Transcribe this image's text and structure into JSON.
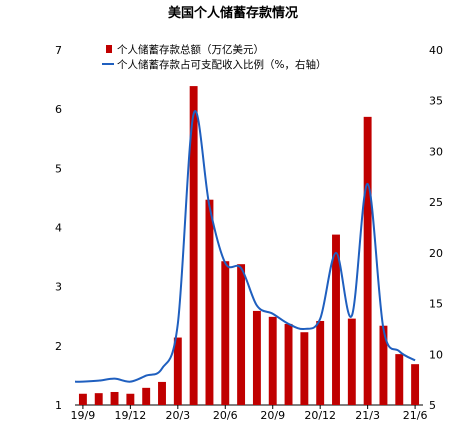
{
  "chart_data": {
    "type": "bar+line",
    "title": "美国个人储蓄存款情况",
    "categories": [
      "19/9",
      "19/10",
      "19/11",
      "19/12",
      "20/1",
      "20/2",
      "20/3",
      "20/4",
      "20/5",
      "20/6",
      "20/7",
      "20/8",
      "20/9",
      "20/10",
      "20/11",
      "20/12",
      "21/1",
      "21/2",
      "21/3",
      "21/4",
      "21/5",
      "21/6"
    ],
    "x_tick_labels": [
      "19/9",
      "19/12",
      "20/3",
      "20/6",
      "20/9",
      "20/12",
      "21/3",
      "21/6"
    ],
    "series": [
      {
        "name": "个人储蓄存款总额（万亿美元）",
        "type": "bar",
        "axis": "left",
        "color": "#c00000",
        "values": [
          1.19,
          1.2,
          1.22,
          1.19,
          1.29,
          1.39,
          2.14,
          6.39,
          4.47,
          3.43,
          3.38,
          2.59,
          2.49,
          2.37,
          2.23,
          2.42,
          3.88,
          2.46,
          5.87,
          2.34,
          1.86,
          1.69
        ]
      },
      {
        "name": "个人储蓄存款占可支配收入比例（%，右轴）",
        "type": "line",
        "axis": "right",
        "color": "#1f5fbf",
        "values": [
          7.3,
          7.4,
          7.6,
          7.3,
          7.9,
          8.6,
          13.0,
          33.7,
          24.6,
          19.0,
          18.5,
          14.8,
          14.0,
          13.0,
          12.5,
          13.5,
          20.0,
          13.8,
          26.8,
          12.5,
          10.3,
          9.4
        ]
      }
    ],
    "ylim_left": [
      1,
      7
    ],
    "yticks_left": [
      "1",
      "2",
      "3",
      "4",
      "5",
      "6",
      "7"
    ],
    "ylim_right": [
      5,
      40
    ],
    "yticks_right": [
      "5",
      "10",
      "15",
      "20",
      "25",
      "30",
      "35",
      "40"
    ],
    "legend_placement": "top-left",
    "grid": false
  }
}
